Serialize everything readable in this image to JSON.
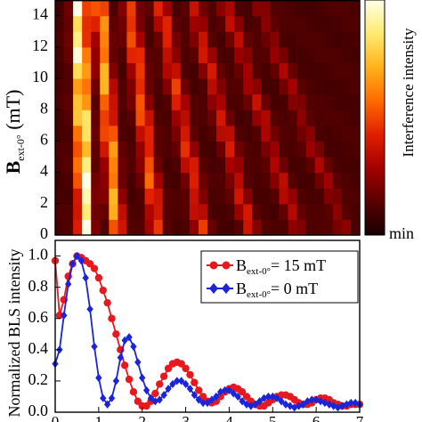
{
  "chart_data": [
    {
      "type": "heatmap",
      "ylabel_main": "B",
      "ylabel_sub": "ext-0°",
      "ylabel_unit": " (mT)",
      "yticks": [
        0,
        2,
        4,
        6,
        8,
        10,
        12,
        14
      ],
      "ylim": [
        0,
        15
      ],
      "xlim": [
        0,
        7
      ],
      "colorbar": {
        "label": "Interference intensity",
        "min_label": "min",
        "colors": [
          "#160000",
          "#5a0000",
          "#a40000",
          "#e01f00",
          "#ff6a00",
          "#ffb21a",
          "#ffea70",
          "#ffffe8"
        ]
      },
      "rows": 15,
      "cols": 34,
      "ridges": [
        {
          "center_at_0": 0.7,
          "drift_at_15": -0.15,
          "amplitude": 1.0,
          "width": 0.16
        },
        {
          "center_at_0": 1.42,
          "drift_at_15": -0.4,
          "amplitude": 0.62,
          "width": 0.16
        },
        {
          "center_at_0": 2.35,
          "drift_at_15": -0.65,
          "amplitude": 0.45,
          "width": 0.17
        },
        {
          "center_at_0": 3.4,
          "drift_at_15": -1.0,
          "amplitude": 0.36,
          "width": 0.17
        },
        {
          "center_at_0": 4.5,
          "drift_at_15": -1.35,
          "amplitude": 0.3,
          "width": 0.17
        },
        {
          "center_at_0": 5.6,
          "drift_at_15": -1.7,
          "amplitude": 0.24,
          "width": 0.17
        },
        {
          "center_at_0": 6.7,
          "drift_at_15": -2.05,
          "amplitude": 0.18,
          "width": 0.17
        }
      ],
      "background": 0.12
    },
    {
      "type": "line",
      "ylabel": "Normalized BLS intensity",
      "xlim": [
        0,
        7
      ],
      "ylim": [
        0,
        1.1
      ],
      "xticks": [
        0,
        1,
        2,
        3,
        4,
        5,
        6,
        7
      ],
      "yticks": [
        0.0,
        0.2,
        0.4,
        0.6,
        0.8,
        1.0
      ],
      "legend_position": "top-right",
      "series": [
        {
          "name_main": "B",
          "name_sub": "ext-0°",
          "name_rest": "= 15 mT",
          "color": "#e8191e",
          "marker": "circle",
          "x": [
            0.0,
            0.1,
            0.2,
            0.3,
            0.4,
            0.5,
            0.6,
            0.7,
            0.8,
            0.9,
            1.0,
            1.1,
            1.2,
            1.3,
            1.4,
            1.5,
            1.6,
            1.7,
            1.8,
            1.9,
            2.0,
            2.1,
            2.2,
            2.3,
            2.4,
            2.5,
            2.6,
            2.7,
            2.8,
            2.9,
            3.0,
            3.1,
            3.2,
            3.3,
            3.4,
            3.5,
            3.6,
            3.7,
            3.8,
            3.9,
            4.0,
            4.1,
            4.2,
            4.3,
            4.4,
            4.5,
            4.6,
            4.7,
            4.8,
            4.9,
            5.0,
            5.1,
            5.2,
            5.3,
            5.4,
            5.5,
            5.6,
            5.7,
            5.8,
            5.9,
            6.0,
            6.1,
            6.2,
            6.3,
            6.4,
            6.5,
            6.6,
            6.7,
            6.8,
            6.9,
            7.0
          ],
          "y": [
            0.97,
            0.62,
            0.72,
            0.87,
            0.95,
            1.0,
            0.99,
            0.97,
            0.95,
            0.92,
            0.86,
            0.78,
            0.7,
            0.6,
            0.5,
            0.4,
            0.3,
            0.21,
            0.13,
            0.07,
            0.04,
            0.04,
            0.07,
            0.12,
            0.18,
            0.23,
            0.28,
            0.31,
            0.32,
            0.31,
            0.28,
            0.24,
            0.19,
            0.14,
            0.1,
            0.07,
            0.06,
            0.07,
            0.1,
            0.13,
            0.15,
            0.16,
            0.15,
            0.13,
            0.1,
            0.07,
            0.05,
            0.04,
            0.04,
            0.06,
            0.08,
            0.1,
            0.11,
            0.11,
            0.1,
            0.08,
            0.06,
            0.05,
            0.05,
            0.06,
            0.08,
            0.09,
            0.09,
            0.08,
            0.06,
            0.05,
            0.04,
            0.04,
            0.05,
            0.05,
            0.05
          ]
        },
        {
          "name_main": "B",
          "name_sub": "ext-0°",
          "name_rest": "= 0 mT",
          "color": "#1a24d8",
          "marker": "diamond",
          "x": [
            0.0,
            0.1,
            0.2,
            0.3,
            0.4,
            0.5,
            0.6,
            0.7,
            0.8,
            0.9,
            1.0,
            1.1,
            1.2,
            1.3,
            1.4,
            1.5,
            1.6,
            1.7,
            1.8,
            1.9,
            2.0,
            2.1,
            2.2,
            2.3,
            2.4,
            2.5,
            2.6,
            2.7,
            2.8,
            2.9,
            3.0,
            3.1,
            3.2,
            3.3,
            3.4,
            3.5,
            3.6,
            3.7,
            3.8,
            3.9,
            4.0,
            4.1,
            4.2,
            4.3,
            4.4,
            4.5,
            4.6,
            4.7,
            4.8,
            4.9,
            5.0,
            5.1,
            5.2,
            5.3,
            5.4,
            5.5,
            5.6,
            5.7,
            5.8,
            5.9,
            6.0,
            6.1,
            6.2,
            6.3,
            6.4,
            6.5,
            6.6,
            6.7,
            6.8,
            6.9,
            7.0
          ],
          "y": [
            0.31,
            0.4,
            0.62,
            0.82,
            0.95,
            1.0,
            0.97,
            0.86,
            0.66,
            0.42,
            0.22,
            0.09,
            0.05,
            0.09,
            0.2,
            0.35,
            0.46,
            0.48,
            0.42,
            0.32,
            0.22,
            0.14,
            0.09,
            0.07,
            0.08,
            0.11,
            0.15,
            0.18,
            0.2,
            0.2,
            0.18,
            0.15,
            0.11,
            0.08,
            0.06,
            0.06,
            0.08,
            0.1,
            0.13,
            0.14,
            0.14,
            0.12,
            0.1,
            0.07,
            0.05,
            0.04,
            0.05,
            0.07,
            0.09,
            0.1,
            0.1,
            0.09,
            0.07,
            0.05,
            0.04,
            0.03,
            0.04,
            0.05,
            0.07,
            0.08,
            0.08,
            0.07,
            0.06,
            0.05,
            0.04,
            0.03,
            0.04,
            0.05,
            0.06,
            0.06,
            0.05
          ]
        }
      ]
    }
  ]
}
